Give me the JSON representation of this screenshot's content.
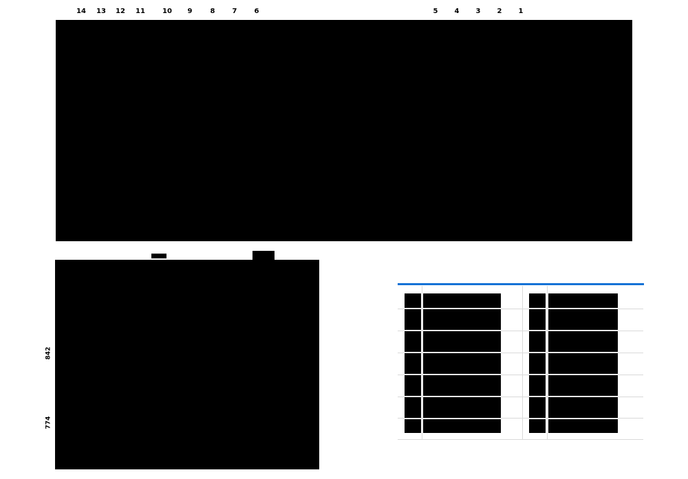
{
  "colors": {
    "background": "#ffffff",
    "redaction": "#000000",
    "accent_blue": "#1472d6",
    "gridline_gray": "#d9d9d9"
  },
  "top_ticks": {
    "labels": [
      "14",
      "13",
      "12",
      "11",
      "10",
      "9",
      "8",
      "7",
      "6",
      "5",
      "4",
      "3",
      "2",
      "1"
    ]
  },
  "left_chart": {
    "y_axis_labels": [
      "842",
      "774"
    ]
  },
  "ranking_table": {
    "row_count": 7,
    "column_groups": 2
  }
}
